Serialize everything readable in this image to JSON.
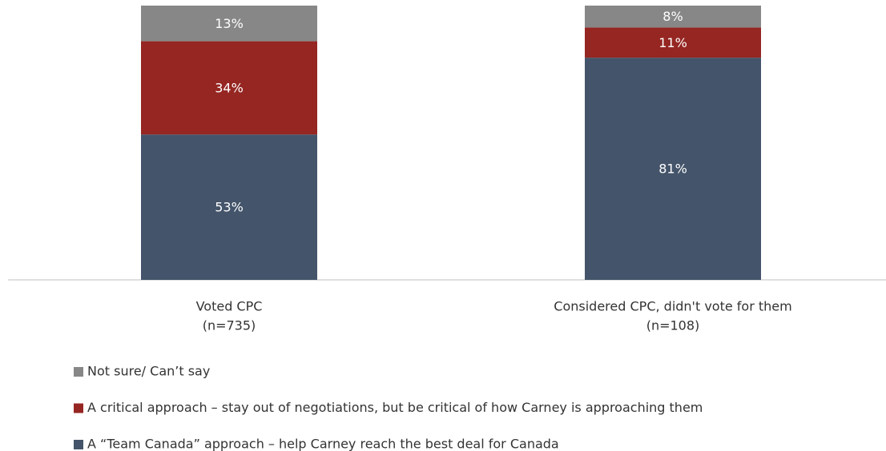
{
  "chart_data": {
    "type": "stacked_bar",
    "categories": [
      [
        "Voted CPC",
        "(n=735)"
      ],
      [
        "Considered CPC, didn't vote for them",
        "(n=108)"
      ]
    ],
    "series": [
      {
        "name": "A “Team Canada” approach – help Carney reach the best deal for Canada",
        "color": "#44546a",
        "values": [
          53,
          81
        ],
        "value_labels": [
          "53%",
          "81%"
        ]
      },
      {
        "name": "A critical approach – stay out of negotiations, but be critical of how Carney is approaching them",
        "color": "#952622",
        "values": [
          34,
          11
        ],
        "value_labels": [
          "34%",
          "11%"
        ]
      },
      {
        "name": "Not sure/ Can’t say",
        "color": "#878787",
        "values": [
          13,
          8
        ],
        "value_labels": [
          "13%",
          "8%"
        ]
      }
    ],
    "ylim": [
      0,
      100
    ]
  }
}
